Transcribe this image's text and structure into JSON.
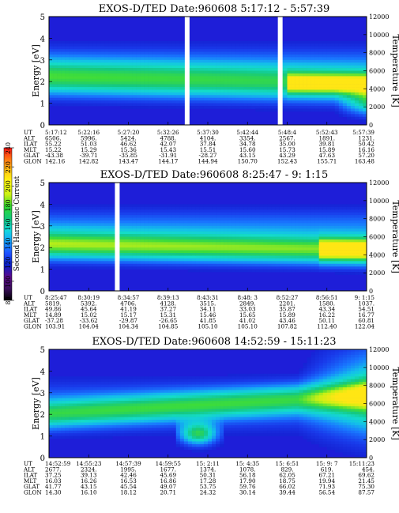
{
  "colorbar": {
    "label": "Second Harmonic Current",
    "ticks": [
      "80",
      "100",
      "120",
      "140",
      "160",
      "180",
      "200",
      "220",
      "240"
    ],
    "range": [
      80,
      240
    ],
    "colors": [
      "#000000",
      "#3a0f5a",
      "#5c0a8a",
      "#0a1ec8",
      "#1e50ff",
      "#14a0ff",
      "#14dcdc",
      "#14c878",
      "#32dc32",
      "#c8f014",
      "#ffff14",
      "#ffc814",
      "#ff7814",
      "#ff1414"
    ]
  },
  "chart_data": [
    {
      "type": "heatmap",
      "title": "EXOS-D/TED   Date:960608   5:17:12 - 5:57:39",
      "ylabel": "Energy [eV]",
      "ylabel_right": "Temperature [K]",
      "ylim": [
        0,
        5
      ],
      "ylim_right": [
        0,
        12000
      ],
      "yticks": [
        "0",
        "1",
        "2",
        "3",
        "4",
        "5"
      ],
      "yticks_right": [
        "0",
        "2000",
        "4000",
        "6000",
        "8000",
        "10000",
        "12000"
      ],
      "times": [
        "5:17:12",
        "5:22:16",
        "5:27:20",
        "5:32:26",
        "5:37:30",
        "5:42:44",
        "5:48:4",
        "5:52:43",
        "5:57:39"
      ],
      "rows": [
        {
          "name": "UT",
          "values": [
            "5:17:12",
            "5:22:16",
            "5:27:20",
            "5:32:26",
            "5:37:30",
            "5:42:44",
            "5:48:4",
            "5:52:43",
            "5:57:39"
          ]
        },
        {
          "name": "ALT",
          "values": [
            "6506.",
            "5996.",
            "5424.",
            "4788.",
            "4104.",
            "3354.",
            "2567.",
            "1891.",
            "1231."
          ]
        },
        {
          "name": "ILAT",
          "values": [
            "55.22",
            "51.03",
            "46.62",
            "42.07",
            "37.84",
            "34.78",
            "35.00",
            "39.81",
            "50.42"
          ]
        },
        {
          "name": "MLT",
          "values": [
            "15.22",
            "15.29",
            "15.36",
            "15.43",
            "15.51",
            "15.60",
            "15.73",
            "15.89",
            "16.16"
          ]
        },
        {
          "name": "GLAT",
          "values": [
            "-43.38",
            "-39.71",
            "-35.85",
            "-31.91",
            "-28.27",
            "43.15",
            "43.29",
            "47.63",
            "57.20"
          ]
        },
        {
          "name": "GLON",
          "values": [
            "142.16",
            "142.82",
            "143.47",
            "144.17",
            "144.94",
            "150.70",
            "152.43",
            "155.71",
            "163.48"
          ]
        }
      ],
      "gaps": [
        0.435,
        0.728
      ]
    },
    {
      "type": "heatmap",
      "title": "EXOS-D/TED   Date:960608   8:25:47 - 9: 1:15",
      "ylabel": "Energy [eV]",
      "ylabel_right": "Temperature [K]",
      "ylim": [
        0,
        5
      ],
      "ylim_right": [
        0,
        12000
      ],
      "yticks": [
        "0",
        "1",
        "2",
        "3",
        "4",
        "5"
      ],
      "yticks_right": [
        "0",
        "2000",
        "4000",
        "6000",
        "8000",
        "10000",
        "12000"
      ],
      "times": [
        "8:25:47",
        "8:30:19",
        "8:34:57",
        "8:39:13",
        "8:43:31",
        "8:48: 3",
        "8:52:27",
        "8:56:51",
        "9: 1:15"
      ],
      "rows": [
        {
          "name": "UT",
          "values": [
            "8:25:47",
            "8:30:19",
            "8:34:57",
            "8:39:13",
            "8:43:31",
            "8:48: 3",
            "8:52:27",
            "8:56:51",
            "9: 1:15"
          ]
        },
        {
          "name": "ALT",
          "values": [
            "5819.",
            "5392.",
            "4706.",
            "4128.",
            "3515.",
            "2849.",
            "2201.",
            "1580.",
            "1037."
          ]
        },
        {
          "name": "ILAT",
          "values": [
            "49.86",
            "45.64",
            "41.19",
            "37.27",
            "34.11",
            "33.03",
            "35.87",
            "43.34",
            "54.51"
          ]
        },
        {
          "name": "MLT",
          "values": [
            "14.89",
            "15.02",
            "15.17",
            "15.31",
            "15.46",
            "15.65",
            "15.89",
            "16.22",
            "16.77"
          ]
        },
        {
          "name": "GLAT",
          "values": [
            "-37.28",
            "-33.62",
            "-29.87",
            "-26.65",
            "41.85",
            "41.02",
            "43.46",
            "50.11",
            "60.81"
          ]
        },
        {
          "name": "GLON",
          "values": [
            "103.91",
            "104.04",
            "104.34",
            "104.85",
            "105.10",
            "105.10",
            "107.82",
            "112.40",
            "122.04"
          ]
        }
      ],
      "gaps": [
        0.215
      ]
    },
    {
      "type": "heatmap",
      "title": "EXOS-D/TED   Date:960608   14:52:59 - 15:11:23",
      "ylabel": "Energy [eV]",
      "ylabel_right": "Temperature [K]",
      "ylim": [
        0,
        5
      ],
      "ylim_right": [
        0,
        12000
      ],
      "yticks": [
        "0",
        "1",
        "2",
        "3",
        "4",
        "5"
      ],
      "yticks_right": [
        "0",
        "2000",
        "4000",
        "6000",
        "8000",
        "10000",
        "12000"
      ],
      "times": [
        "14:52:59",
        "14:55:23",
        "14:57:39",
        "14:59:55",
        "15: 2:11",
        "15: 4:35",
        "15: 6:51",
        "15: 9: 7",
        "15:11:23"
      ],
      "rows": [
        {
          "name": "UT",
          "values": [
            "14:52:59",
            "14:55:23",
            "14:57:39",
            "14:59:55",
            "15: 2:11",
            "15: 4:35",
            "15: 6:51",
            "15: 9: 7",
            "15:11:23"
          ]
        },
        {
          "name": "ALT",
          "values": [
            "2677.",
            "2324.",
            "1995.",
            "1677.",
            "1374.",
            "1078.",
            "829.",
            "619.",
            "454."
          ]
        },
        {
          "name": "ILAT",
          "values": [
            "37.25",
            "39.13",
            "42.46",
            "45.69",
            "50.31",
            "56.18",
            "62.05",
            "67.21",
            "69.62"
          ]
        },
        {
          "name": "MLT",
          "values": [
            "16.03",
            "16.26",
            "16.53",
            "16.86",
            "17.28",
            "17.90",
            "18.75",
            "19.94",
            "21.45"
          ]
        },
        {
          "name": "GLAT",
          "values": [
            "41.77",
            "43.15",
            "45.54",
            "49.07",
            "53.75",
            "59.76",
            "66.02",
            "71.93",
            "75.30"
          ]
        },
        {
          "name": "GLON",
          "values": [
            "14.30",
            "16.10",
            "18.12",
            "20.71",
            "24.32",
            "30.14",
            "39.44",
            "56.54",
            "87.57"
          ]
        }
      ],
      "gaps": []
    }
  ]
}
